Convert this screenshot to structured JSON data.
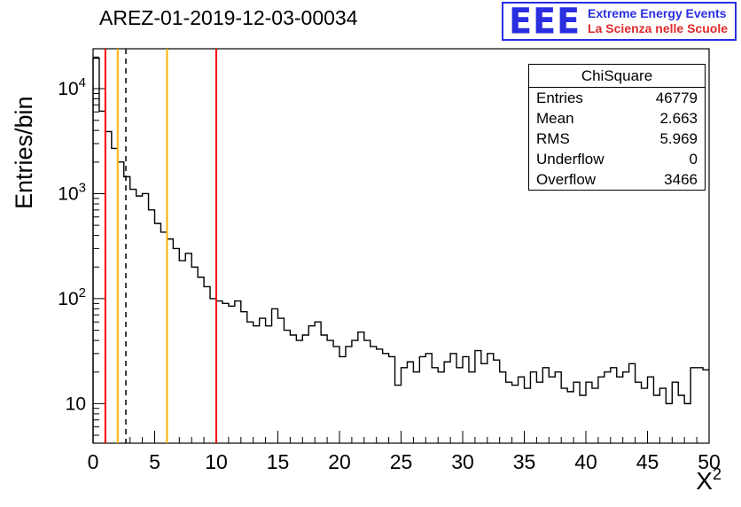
{
  "title": "AREZ-01-2019-12-03-00034",
  "logo": {
    "letters": "EEE",
    "line1": "Extreme Energy Events",
    "line2": "La Scienza nelle Scuole",
    "blue": "#2a2ee0",
    "red": "#e02a2a"
  },
  "stats": {
    "title": "ChiSquare",
    "rows": [
      {
        "label": "Entries",
        "value": "46779"
      },
      {
        "label": "Mean",
        "value": "2.663"
      },
      {
        "label": "RMS",
        "value": "5.969"
      },
      {
        "label": "Underflow",
        "value": "0"
      },
      {
        "label": "Overflow",
        "value": "3466"
      }
    ]
  },
  "axes": {
    "y_label": "Entries/bin",
    "x_label_base": "X",
    "x_label_exp": "2",
    "x_ticks": [
      0,
      5,
      10,
      15,
      20,
      25,
      30,
      35,
      40,
      45,
      50
    ],
    "y_ticks": [
      {
        "value": 10,
        "label": "10",
        "exp": ""
      },
      {
        "value": 100,
        "label": "10",
        "exp": "2"
      },
      {
        "value": 1000,
        "label": "10",
        "exp": "3"
      },
      {
        "value": 10000,
        "label": "10",
        "exp": "4"
      }
    ]
  },
  "markers": [
    {
      "x": 1,
      "color": "#f40000",
      "style": "solid"
    },
    {
      "x": 2,
      "color": "#ffb300",
      "style": "solid"
    },
    {
      "x": 2.663,
      "color": "#000000",
      "style": "dashed"
    },
    {
      "x": 6,
      "color": "#ffb300",
      "style": "solid"
    },
    {
      "x": 10,
      "color": "#f40000",
      "style": "solid"
    }
  ],
  "chart_data": {
    "type": "bar",
    "title": "AREZ-01-2019-12-03-00034",
    "xlabel": "X^2",
    "ylabel": "Entries/bin",
    "yscale": "log",
    "xlim": [
      0,
      50
    ],
    "ylim": [
      4.2,
      24000
    ],
    "bin_start": 0,
    "bin_width": 0.5,
    "legend": "none",
    "grid": false,
    "values": [
      19500,
      6100,
      3900,
      2700,
      2000,
      1450,
      1100,
      950,
      1000,
      700,
      520,
      430,
      370,
      300,
      230,
      270,
      200,
      160,
      130,
      100,
      95,
      90,
      85,
      95,
      75,
      60,
      55,
      65,
      55,
      80,
      65,
      50,
      45,
      40,
      45,
      55,
      60,
      45,
      40,
      35,
      28,
      35,
      40,
      48,
      40,
      35,
      33,
      30,
      28,
      15,
      22,
      25,
      20,
      28,
      30,
      22,
      20,
      25,
      30,
      22,
      28,
      20,
      32,
      24,
      30,
      26,
      20,
      16,
      15,
      18,
      14,
      20,
      16,
      22,
      18,
      20,
      14,
      13,
      16,
      12,
      16,
      14,
      18,
      20,
      22,
      18,
      20,
      24,
      16,
      14,
      18,
      12,
      14,
      10,
      16,
      12,
      10,
      22,
      22,
      21
    ]
  }
}
